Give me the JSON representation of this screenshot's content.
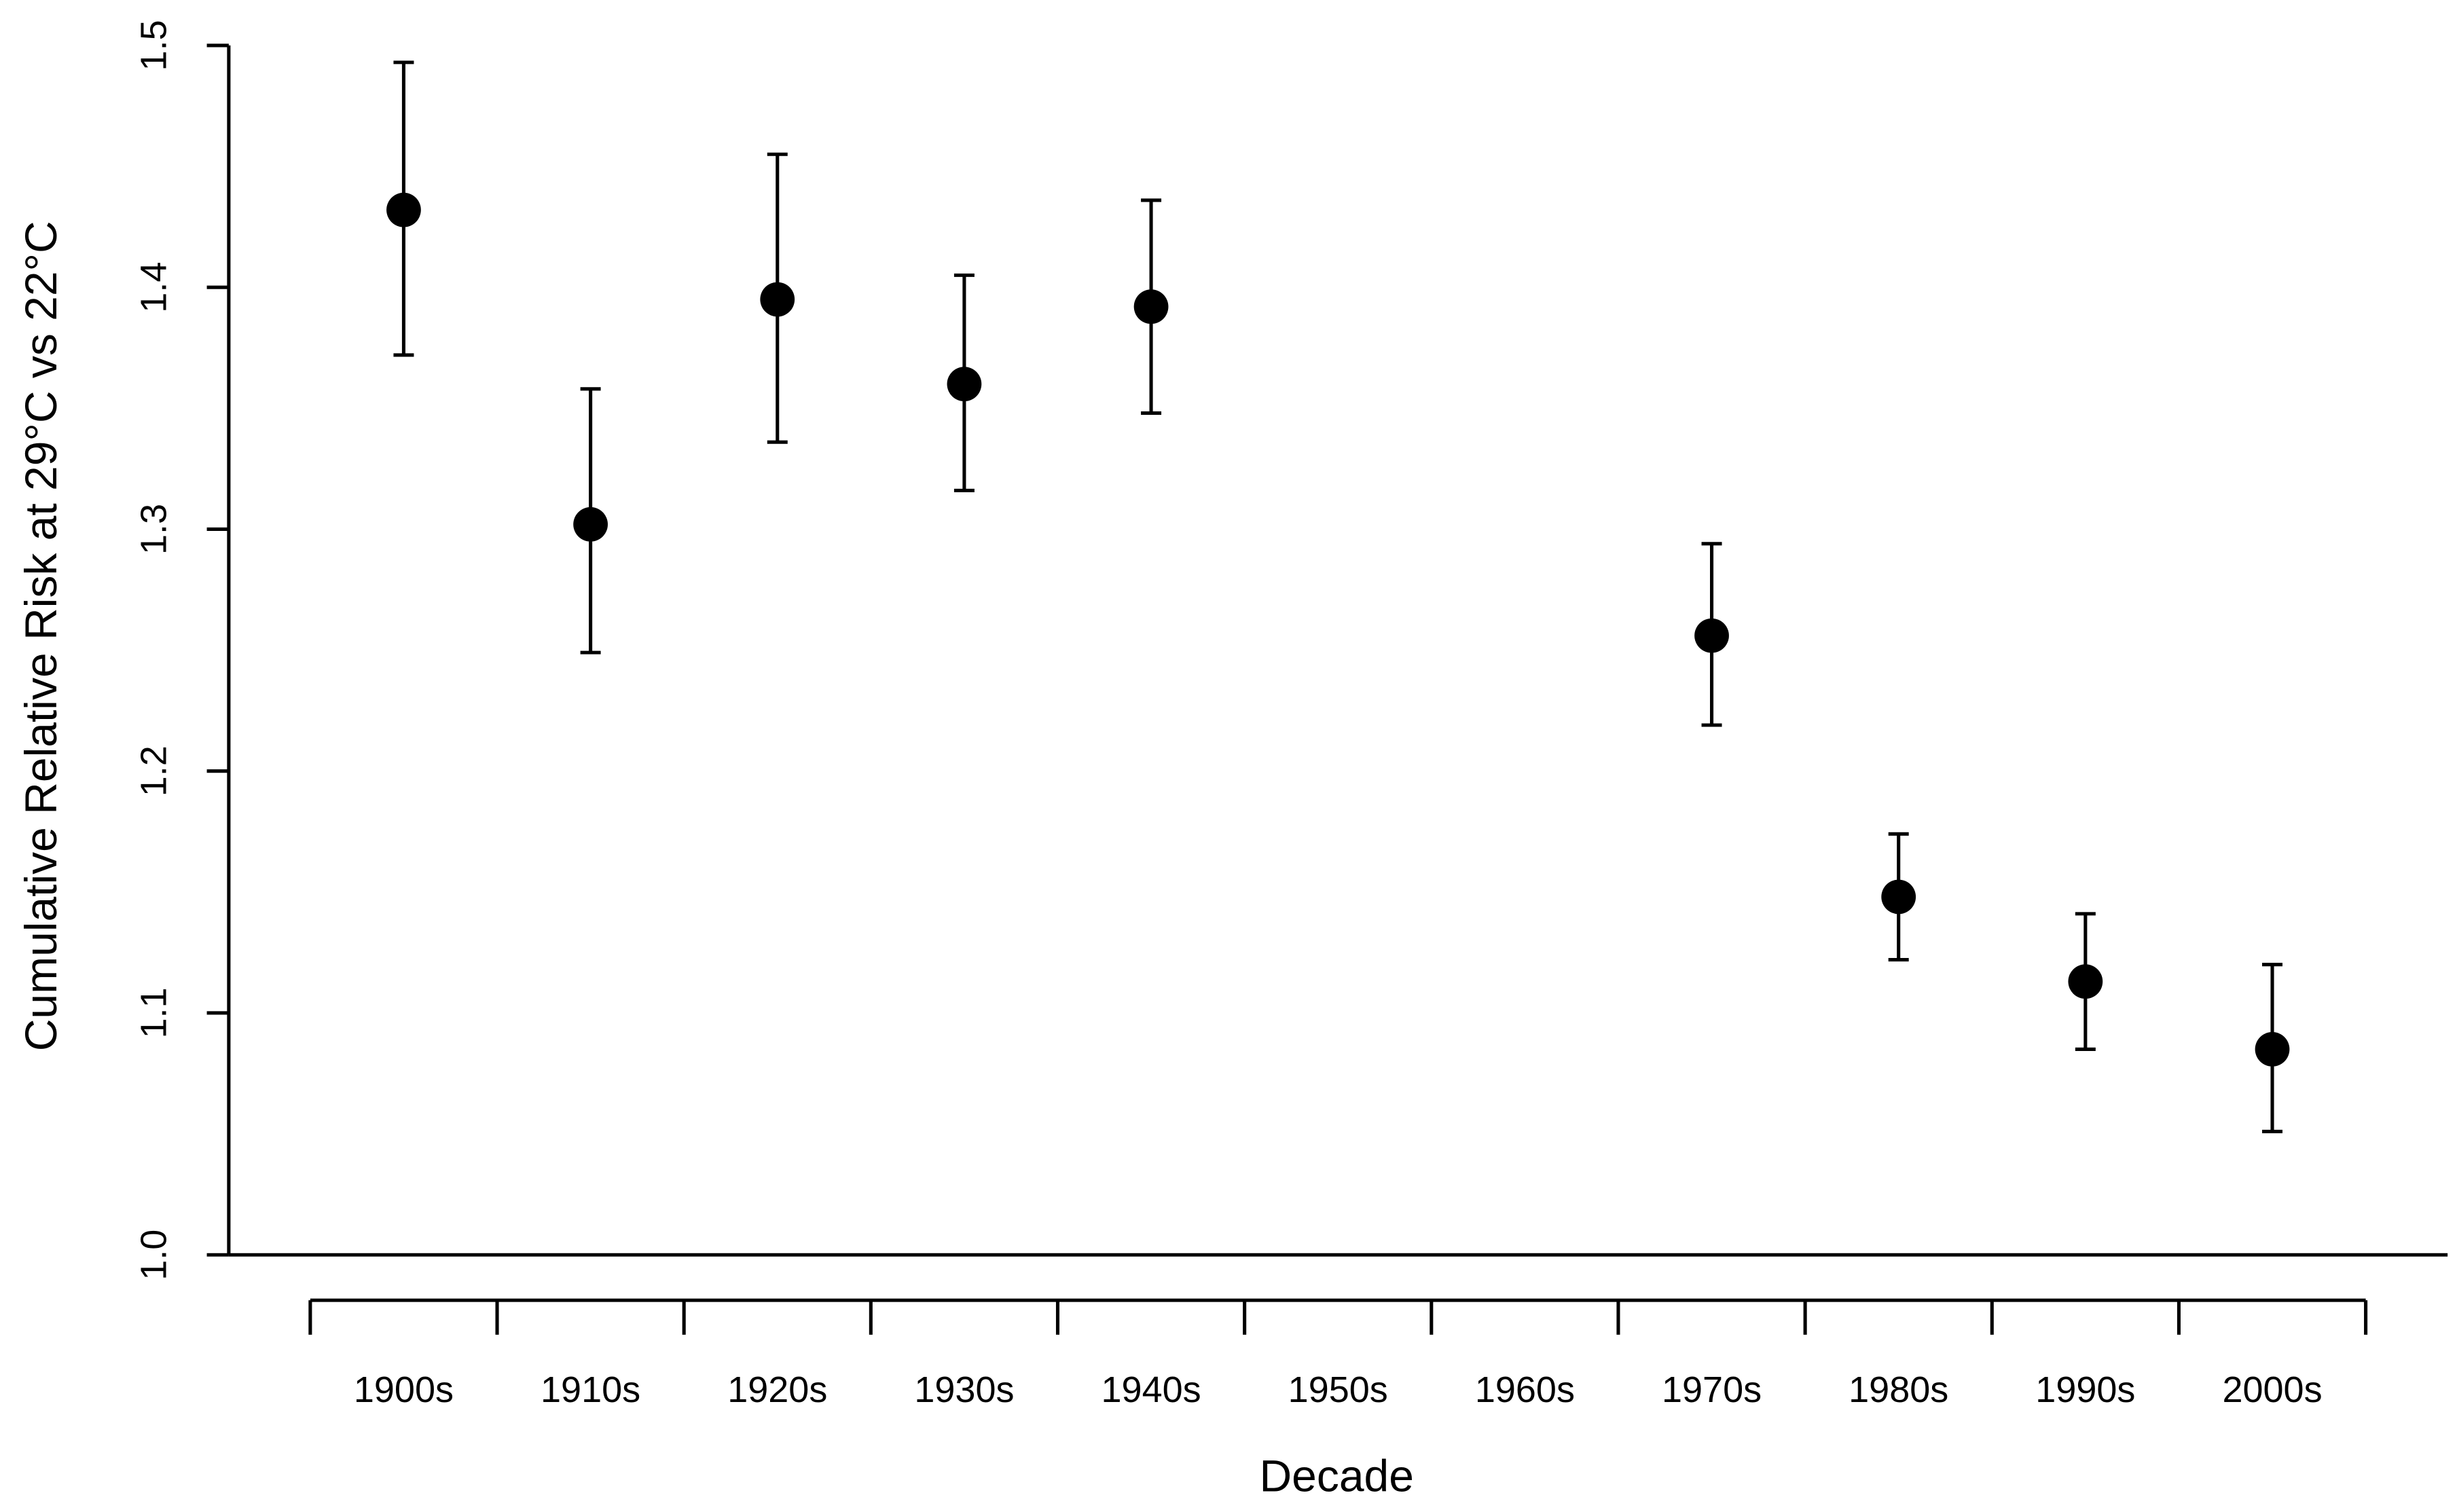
{
  "chart_data": {
    "type": "scatter",
    "title": "",
    "xlabel": "Decade",
    "ylabel": "Cumulative Relative Risk at 29°C vs 22°C",
    "ylim": [
      1.0,
      1.5
    ],
    "yticks": [
      "1.0",
      "1.1",
      "1.2",
      "1.3",
      "1.4",
      "1.5"
    ],
    "categories": [
      "1900s",
      "1910s",
      "1920s",
      "1930s",
      "1940s",
      "1950s",
      "1960s",
      "1970s",
      "1980s",
      "1990s",
      "2000s"
    ],
    "points": [
      {
        "x": "1900s",
        "y": 1.432,
        "lower": 1.372,
        "upper": 1.493
      },
      {
        "x": "1910s",
        "y": 1.302,
        "lower": 1.249,
        "upper": 1.358
      },
      {
        "x": "1920s",
        "y": 1.395,
        "lower": 1.336,
        "upper": 1.455
      },
      {
        "x": "1930s",
        "y": 1.36,
        "lower": 1.316,
        "upper": 1.405
      },
      {
        "x": "1940s",
        "y": 1.392,
        "lower": 1.348,
        "upper": 1.436
      },
      {
        "x": "1970s",
        "y": 1.256,
        "lower": 1.219,
        "upper": 1.294
      },
      {
        "x": "1980s",
        "y": 1.148,
        "lower": 1.122,
        "upper": 1.174
      },
      {
        "x": "1990s",
        "y": 1.113,
        "lower": 1.085,
        "upper": 1.141
      },
      {
        "x": "2000s",
        "y": 1.085,
        "lower": 1.051,
        "upper": 1.12
      }
    ],
    "grid": false,
    "legend": "none",
    "marker_color": "#000000"
  }
}
